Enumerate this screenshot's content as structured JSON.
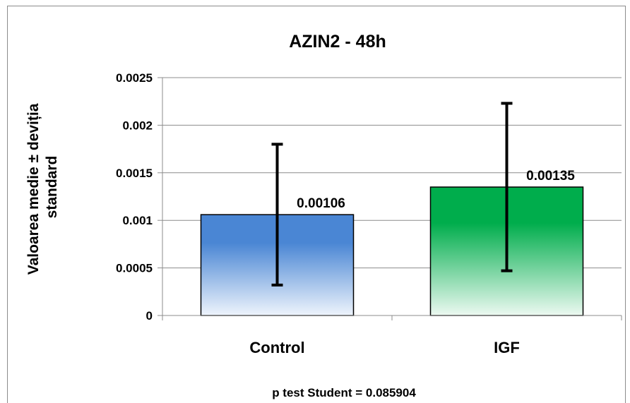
{
  "chart_data": {
    "type": "bar",
    "title": "AZIN2 - 48h",
    "ylabel_lines": [
      "Valoarea medie ± deviția",
      "standard"
    ],
    "xlabel": "",
    "categories": [
      "Control",
      "IGF"
    ],
    "values": [
      0.00106,
      0.00135
    ],
    "data_labels": [
      "0.00106",
      "0.00135"
    ],
    "error_bars": [
      {
        "low": 0.00032,
        "high": 0.0018
      },
      {
        "low": 0.00047,
        "high": 0.00223
      }
    ],
    "ylim": [
      0,
      0.0025
    ],
    "yticks": [
      0,
      0.0005,
      0.001,
      0.0015,
      0.002,
      0.0025
    ],
    "ytick_labels": [
      "0",
      "0.0005",
      "0.001",
      "0.0015",
      "0.002",
      "0.0025"
    ],
    "grid": true,
    "legend": "none",
    "colors": [
      "#4a86d4",
      "#00ad4c"
    ],
    "footnote": "p test Student = 0.085904"
  }
}
